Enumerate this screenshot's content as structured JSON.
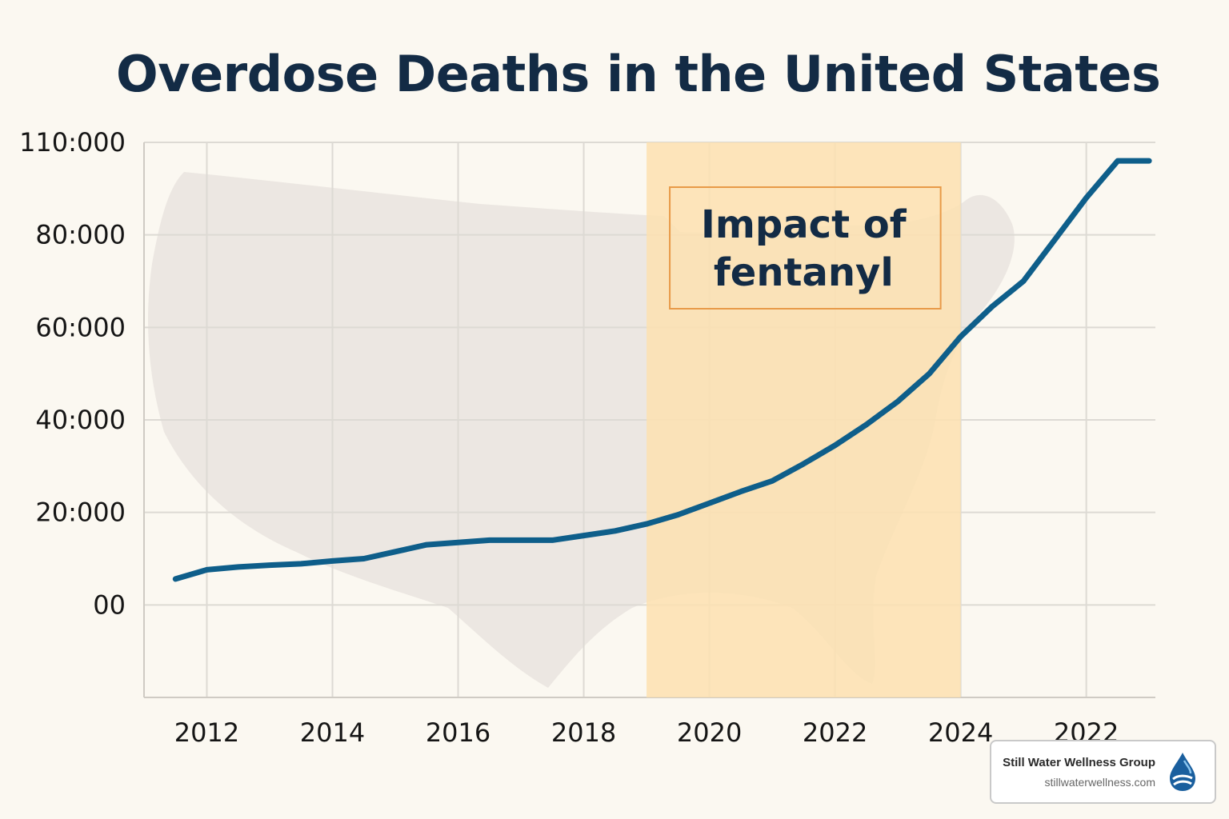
{
  "chart_data": {
    "type": "line",
    "title": "Overdose Deaths in the United States",
    "x_tick_labels": [
      "2012",
      "2014",
      "2016",
      "2018",
      "2020",
      "2022",
      "2024",
      "2022"
    ],
    "y_tick_labels": [
      "00",
      "20:000",
      "40:000",
      "60:000",
      "80:000",
      "110:000"
    ],
    "ylim": [
      -20000,
      100000
    ],
    "grid": true,
    "series": [
      {
        "color": "#0e5e8a",
        "x": [
          2011.5,
          2012.0,
          2012.5,
          2013.0,
          2013.5,
          2014.0,
          2014.5,
          2015.0,
          2015.5,
          2016.0,
          2016.5,
          2017.0,
          2017.5,
          2018.0,
          2018.5,
          2019.0,
          2019.5,
          2020.0,
          2020.5,
          2021.0,
          2021.5,
          2022.0,
          2022.5,
          2023.0,
          2023.5,
          2024.0,
          2024.5,
          2025.0,
          2025.5,
          2026.0,
          2026.5,
          2027.0
        ],
        "y": [
          5600,
          7600,
          8200,
          8600,
          8900,
          9500,
          10000,
          11500,
          13000,
          13500,
          14000,
          14000,
          14000,
          15000,
          16000,
          17500,
          19500,
          22000,
          24500,
          26800,
          30500,
          34500,
          39000,
          44000,
          50000,
          58000,
          64500,
          70000,
          79000,
          88000,
          96000,
          96000
        ]
      }
    ],
    "highlight": {
      "label_lines": [
        "Impact of",
        "fentanyl"
      ],
      "x_range": [
        2019.0,
        2024.0
      ],
      "color": "#fde0b0"
    }
  },
  "brand": {
    "name": "Still Water Wellness Group",
    "url": "stillwaterwellness.com",
    "logo_icon": "water-drop-icon"
  }
}
